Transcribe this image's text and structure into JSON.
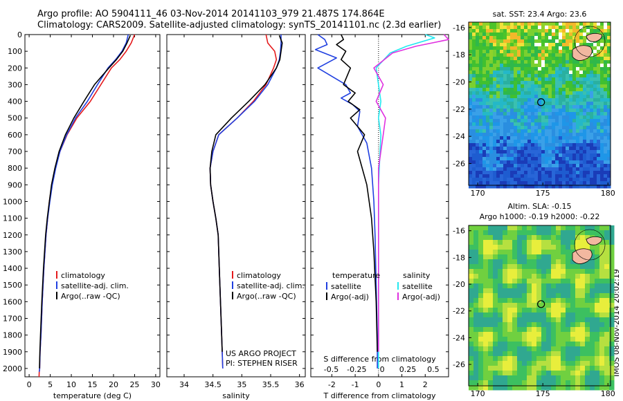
{
  "header": {
    "title_line1": "Argo profile: AO 5904111_46 03-Nov-2014 20141103_979 21.487S 174.864E",
    "title_line2": "Climatology: CARS2009. Satellite-adjusted climatology: synTS_20141101.nc (2.3d earlier)"
  },
  "side_label": "IMOS 08-Nov-2014 20:02:19",
  "colors": {
    "climatology": "#e41a1c",
    "satellite": "#1f3fe0",
    "argo": "#000000",
    "satellite_sal": "#22e8f0",
    "argo_sal": "#e030e0"
  },
  "depth_axis": {
    "ylim": [
      0,
      2050
    ],
    "ticks": [
      0,
      100,
      200,
      300,
      400,
      500,
      600,
      700,
      800,
      900,
      1000,
      1100,
      1200,
      1300,
      1400,
      1500,
      1600,
      1700,
      1800,
      1900,
      2000
    ],
    "labels": [
      "0",
      "100",
      "200",
      "300",
      "400",
      "500",
      "600",
      "700",
      "800",
      "900",
      "1000",
      "1100",
      "1200",
      "1300",
      "1400",
      "1500",
      "1600",
      "1700",
      "1800",
      "1900",
      "2000"
    ]
  },
  "chart_data": [
    {
      "type": "line",
      "xlabel": "temperature (deg C)",
      "xlim": [
        -1,
        31
      ],
      "xticks": [
        0,
        5,
        10,
        15,
        20,
        25,
        30
      ],
      "xtick_labels": [
        "0",
        "5",
        "10",
        "15",
        "20",
        "25",
        "30"
      ],
      "legend": [
        "climatology",
        "satellite-adj. clim.",
        "Argo(..raw -QC)"
      ],
      "series": [
        {
          "name": "climatology",
          "x": [
            25.0,
            24.2,
            23.0,
            21.5,
            19.5,
            17.0,
            14.5,
            11.3,
            9.0,
            7.3,
            6.2,
            5.4,
            4.8,
            4.4,
            4.0,
            3.5,
            3.1,
            2.8,
            2.6,
            2.5,
            2.4,
            2.35
          ],
          "y": [
            0,
            50,
            100,
            150,
            200,
            300,
            400,
            500,
            600,
            700,
            800,
            900,
            1000,
            1100,
            1200,
            1400,
            1600,
            1800,
            1900,
            2000,
            2020,
            2050
          ]
        },
        {
          "name": "satellite-adj. clim.",
          "x": [
            23.5,
            23.0,
            22.0,
            20.5,
            18.7,
            16.2,
            13.8,
            11.0,
            8.9,
            7.3,
            6.3,
            5.5,
            4.9,
            4.4,
            4.0,
            3.5,
            3.1,
            2.8,
            2.6,
            2.5,
            2.4
          ],
          "y": [
            0,
            50,
            100,
            150,
            200,
            300,
            400,
            500,
            600,
            700,
            800,
            900,
            1000,
            1100,
            1200,
            1400,
            1600,
            1800,
            1900,
            2000,
            2020
          ]
        },
        {
          "name": "Argo(..raw -QC)",
          "x": [
            24.0,
            23.2,
            22.2,
            20.7,
            18.9,
            15.5,
            13.0,
            10.6,
            8.6,
            7.1,
            6.1,
            5.3,
            4.8,
            4.3,
            3.9,
            3.4,
            3.0,
            2.7,
            2.55,
            2.45
          ],
          "y": [
            5,
            50,
            100,
            150,
            200,
            300,
            400,
            500,
            600,
            700,
            800,
            900,
            1000,
            1100,
            1200,
            1400,
            1600,
            1800,
            1900,
            2000
          ]
        }
      ]
    },
    {
      "type": "line",
      "xlabel": "salinity",
      "xlim": [
        33.7,
        36.1
      ],
      "xticks": [
        34,
        34.5,
        35,
        35.5,
        36
      ],
      "xtick_labels": [
        "34",
        "34.5",
        "35",
        "35.5",
        "36"
      ],
      "legend": [
        "climatology",
        "satellite-adj. clim.",
        "Argo(..raw -QC)"
      ],
      "annotation_lines": [
        "US ARGO PROJECT",
        "PI: STEPHEN RISER"
      ],
      "series": [
        {
          "name": "climatology",
          "x": [
            35.42,
            35.45,
            35.57,
            35.6,
            35.55,
            35.42,
            35.2,
            34.92,
            34.6,
            34.5,
            34.45,
            34.46,
            34.5,
            34.55,
            34.59,
            34.61,
            34.63,
            34.65,
            34.66,
            34.67
          ],
          "y": [
            0,
            50,
            100,
            150,
            200,
            300,
            400,
            500,
            600,
            700,
            800,
            900,
            1000,
            1100,
            1200,
            1400,
            1600,
            1800,
            1900,
            2000
          ]
        },
        {
          "name": "satellite-adj. clim.",
          "x": [
            35.68,
            35.68,
            35.67,
            35.65,
            35.6,
            35.45,
            35.22,
            34.92,
            34.6,
            34.5,
            34.45,
            34.46,
            34.5,
            34.55,
            34.59,
            34.61,
            34.63,
            34.65,
            34.66,
            34.67
          ],
          "y": [
            0,
            50,
            100,
            150,
            200,
            300,
            400,
            500,
            600,
            700,
            800,
            900,
            1000,
            1100,
            1200,
            1400,
            1600,
            1800,
            1900,
            2000
          ]
        },
        {
          "name": "Argo(..raw -QC)",
          "x": [
            35.65,
            35.7,
            35.68,
            35.66,
            35.6,
            35.4,
            35.12,
            34.82,
            34.55,
            34.48,
            34.45,
            34.46,
            34.5,
            34.55,
            34.59,
            34.61,
            34.63,
            34.65,
            34.66
          ],
          "y": [
            5,
            50,
            100,
            150,
            200,
            300,
            400,
            500,
            600,
            700,
            800,
            900,
            1000,
            1100,
            1200,
            1400,
            1600,
            1800,
            1900
          ]
        }
      ]
    },
    {
      "type": "line",
      "xlabel": "T difference from climatology",
      "top_label": "S difference from climatology",
      "xlim": [
        -2.9,
        3.0
      ],
      "xticks": [
        -2,
        -1,
        0,
        1,
        2
      ],
      "xtick_labels": [
        "-2",
        "-1",
        "0",
        "1",
        "2"
      ],
      "top_ticks": [
        -0.5,
        -0.25,
        0,
        0.25,
        0.5
      ],
      "top_tick_labels": [
        "-0.5",
        "-0.25",
        "0",
        "0.25",
        "0.5"
      ],
      "legend_left_title": "temperature",
      "legend_right_title": "salinity",
      "legend_left": [
        "satellite",
        "Argo(-adj)"
      ],
      "legend_right": [
        "satellite",
        "Argo(-adj)"
      ],
      "series": [
        {
          "name": "temperature satellite",
          "x": [
            -2.6,
            -2.3,
            -2.2,
            -2.7,
            -1.8,
            -2.6,
            -1.4,
            -1.2,
            -1.6,
            -1.1,
            -0.8,
            -0.9,
            -0.5,
            -0.3,
            -0.2,
            -0.15,
            -0.1,
            -0.05,
            -0.05
          ],
          "y": [
            0,
            30,
            60,
            90,
            140,
            200,
            300,
            350,
            380,
            420,
            460,
            550,
            650,
            800,
            1000,
            1200,
            1500,
            1800,
            2000
          ]
        },
        {
          "name": "temperature Argo(-adj)",
          "x": [
            -1.6,
            -1.5,
            -1.8,
            -1.4,
            -1.6,
            -1.2,
            -1.5,
            -1.0,
            -1.3,
            -0.8,
            -1.2,
            -0.6,
            -0.9,
            -0.5,
            -0.3,
            -0.2,
            -0.1,
            -0.05
          ],
          "y": [
            0,
            30,
            60,
            100,
            150,
            200,
            300,
            350,
            400,
            450,
            500,
            600,
            700,
            900,
            1100,
            1300,
            1600,
            1900
          ]
        },
        {
          "name": "salinity satellite",
          "x": [
            2.0,
            2.4,
            1.2,
            0.5,
            -0.1,
            0.0,
            0.1,
            0.0,
            0.1,
            0.05,
            0.0,
            0.0,
            0.0,
            0.0
          ],
          "y": [
            0,
            20,
            70,
            110,
            200,
            300,
            400,
            500,
            600,
            750,
            900,
            1200,
            1600,
            2000
          ]
        },
        {
          "name": "salinity Argo(-adj)",
          "x": [
            2.8,
            3.0,
            1.6,
            0.6,
            -0.2,
            0.2,
            -0.1,
            0.3,
            0.2,
            0.1,
            0.0,
            0.0,
            0.0,
            0.0
          ],
          "y": [
            0,
            30,
            70,
            110,
            200,
            300,
            400,
            500,
            600,
            700,
            800,
            1000,
            1400,
            1900
          ]
        }
      ]
    },
    {
      "type": "heatmap",
      "title": "sat. SST: 23.4  Argo: 23.6",
      "xlim": [
        169.3,
        180.2
      ],
      "ylim": [
        -27.6,
        -15.6
      ],
      "xticks": [
        170,
        175,
        180
      ],
      "xtick_labels": [
        "170",
        "175",
        "180"
      ],
      "yticks": [
        -16,
        -18,
        -20,
        -22,
        -24,
        -26
      ],
      "ytick_labels": [
        "-16",
        "-18",
        "-20",
        "-22",
        "-24",
        "-26"
      ],
      "marker": {
        "lon": 174.864,
        "lat": -21.487
      }
    },
    {
      "type": "heatmap",
      "title_lines": [
        "Altim. SLA: -0.15",
        "Argo h1000: -0.19  h2000: -0.22"
      ],
      "xlim": [
        169.3,
        180.2
      ],
      "ylim": [
        -27.6,
        -15.6
      ],
      "xticks": [
        170,
        175,
        180
      ],
      "xtick_labels": [
        "170",
        "175",
        "180"
      ],
      "yticks": [
        -16,
        -18,
        -20,
        -22,
        -24,
        -26
      ],
      "ytick_labels": [
        "-16",
        "-18",
        "-20",
        "-22",
        "-24",
        "-26"
      ],
      "marker": {
        "lon": 174.864,
        "lat": -21.487
      }
    }
  ]
}
